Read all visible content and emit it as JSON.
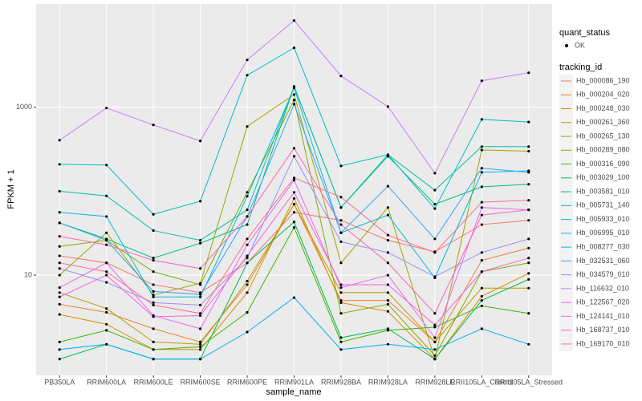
{
  "chart_data": {
    "type": "line",
    "x_label": "sample_name",
    "y_label": "FPKM + 1",
    "log_y": true,
    "grid": true,
    "point_color": "#000000",
    "categories": [
      "PB350LA",
      "RRIM600LA",
      "RRIM600LE",
      "RRIM600SE",
      "RRIM600PE",
      "RRIM901LA",
      "RRIM928BA",
      "RRIM928LA",
      "RRIM928LE",
      "RRII105LA_Control",
      "RRII105LA_Stressed"
    ],
    "ylim": [
      0.64,
      17000
    ],
    "yticks": [
      10,
      1000
    ],
    "legend": {
      "shape_title": "quant_status",
      "shape_labels": [
        "OK"
      ],
      "color_title": "tracking_id"
    },
    "series": [
      {
        "name": "Hb_000086_190",
        "color": "#F8766D",
        "values": [
          17,
          14,
          7.7,
          6.2,
          14,
          56,
          45,
          26,
          19,
          40,
          45
        ]
      },
      {
        "name": "Hb_000204_020",
        "color": "#EA8331",
        "values": [
          4.5,
          3.6,
          2.3,
          1.6,
          7.7,
          70,
          5,
          5,
          1.6,
          15,
          21
        ]
      },
      {
        "name": "Hb_000248_030",
        "color": "#D89000",
        "values": [
          3.4,
          2.6,
          1.3,
          1.3,
          6.2,
          82,
          4.7,
          3.7,
          1,
          5.6,
          10.5
        ]
      },
      {
        "name": "Hb_000261_360",
        "color": "#C09B00",
        "values": [
          6.2,
          4,
          1.6,
          1.5,
          8.5,
          70,
          6.2,
          6.2,
          1.6,
          7,
          7
        ]
      },
      {
        "name": "Hb_000265_130",
        "color": "#A3A500",
        "values": [
          10,
          32,
          5.8,
          8,
          590,
          1420,
          14,
          64,
          1,
          310,
          300
        ]
      },
      {
        "name": "Hb_000289_080",
        "color": "#7CAE00",
        "values": [
          22,
          26,
          11,
          7.7,
          97,
          1220,
          3.5,
          4.5,
          1.1,
          11,
          14
        ]
      },
      {
        "name": "Hb_000316_090",
        "color": "#39B600",
        "values": [
          1.6,
          2.2,
          1.3,
          1.4,
          3.6,
          37,
          1.6,
          2.2,
          2.4,
          4.3,
          3.5
        ]
      },
      {
        "name": "Hb_003029_100",
        "color": "#00BB4E",
        "values": [
          1,
          1.5,
          1,
          1,
          14,
          43,
          1.8,
          2.3,
          1,
          5,
          8.9
        ]
      },
      {
        "name": "Hb_003581_010",
        "color": "#00BF7D",
        "values": [
          42,
          27,
          16,
          24,
          40,
          1770,
          64,
          261,
          70,
          113,
          121
        ]
      },
      {
        "name": "Hb_005731_140",
        "color": "#00C1A3",
        "values": [
          100,
          88,
          34,
          26,
          60,
          1770,
          64,
          272,
          103,
          340,
          340
        ]
      },
      {
        "name": "Hb_005933_010",
        "color": "#00BFC4",
        "values": [
          209,
          205,
          53,
          76,
          2410,
          5110,
          200,
          272,
          62,
          718,
          668
        ]
      },
      {
        "name": "Hb_006995_010",
        "color": "#00BAE0",
        "values": [
          56,
          50,
          5.5,
          5.5,
          87,
          1700,
          32,
          52,
          9.3,
          168,
          175
        ]
      },
      {
        "name": "Hb_008277_030",
        "color": "#00B0F6",
        "values": [
          1.3,
          1.5,
          1,
          1,
          2.1,
          5.4,
          1.3,
          1.5,
          1.3,
          2.3,
          1.5
        ]
      },
      {
        "name": "Hb_032531_060",
        "color": "#35A2FF",
        "values": [
          42,
          26,
          6.4,
          5.9,
          50,
          1090,
          32,
          115,
          27,
          188,
          168
        ]
      },
      {
        "name": "Hb_034579_010",
        "color": "#9590FF",
        "values": [
          12,
          8.2,
          4.7,
          4.4,
          16,
          261,
          25,
          18.6,
          9.6,
          18.6,
          27
        ]
      },
      {
        "name": "Hb_116632_010",
        "color": "#C77CFF",
        "values": [
          405,
          980,
          616,
          397,
          3670,
          10800,
          2360,
          1020,
          164,
          2070,
          2580
        ]
      },
      {
        "name": "Hb_122567_020",
        "color": "#E76BF3",
        "values": [
          7.1,
          14,
          3.3,
          2.3,
          23,
          135,
          7.1,
          10,
          1.8,
          64,
          60
        ]
      },
      {
        "name": "Hb_124141_010",
        "color": "#FA62DB",
        "values": [
          5.5,
          10,
          3.2,
          3.3,
          17,
          97,
          7.7,
          7.7,
          2.55,
          11,
          16
        ]
      },
      {
        "name": "Hb_168737_010",
        "color": "#FF62BC",
        "values": [
          29,
          23,
          15,
          12,
          50,
          325,
          40,
          14,
          3.5,
          52,
          60
        ]
      },
      {
        "name": "Hb_169170_010",
        "color": "#FF6C91",
        "values": [
          14,
          11,
          4.4,
          3.5,
          27,
          144,
          85,
          30,
          18.6,
          74,
          78
        ]
      }
    ]
  }
}
